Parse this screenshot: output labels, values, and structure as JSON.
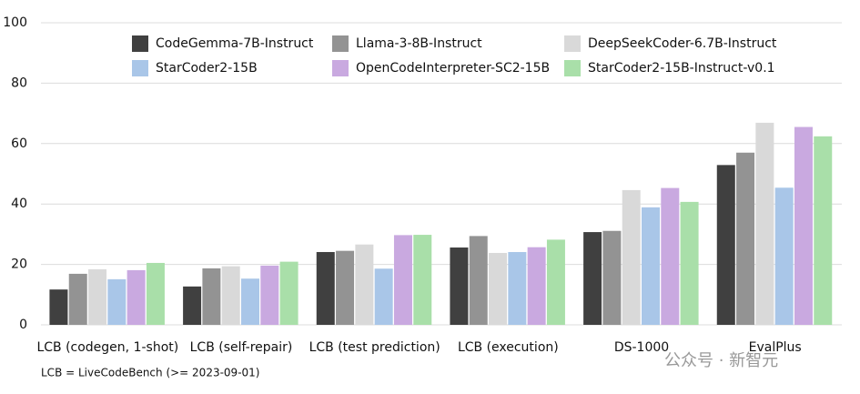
{
  "chart_data": {
    "type": "bar",
    "categories": [
      "LCB (codegen, 1-shot)",
      "LCB (self-repair)",
      "LCB (test prediction)",
      "LCB (execution)",
      "DS-1000",
      "EvalPlus"
    ],
    "series": [
      {
        "name": "CodeGemma-7B-Instruct",
        "color": "#404040",
        "values": [
          11.7,
          12.7,
          24.1,
          25.6,
          30.7,
          52.9
        ]
      },
      {
        "name": "Llama-3-8B-Instruct",
        "color": "#939393",
        "values": [
          16.9,
          18.7,
          24.5,
          29.4,
          31.1,
          57.0
        ]
      },
      {
        "name": "DeepSeekCoder-6.7B-Instruct",
        "color": "#d9d9d9",
        "values": [
          18.4,
          19.4,
          26.6,
          23.8,
          44.6,
          66.9
        ]
      },
      {
        "name": "StarCoder2-15B",
        "color": "#a9c6e8",
        "values": [
          15.1,
          15.3,
          18.6,
          24.1,
          38.9,
          45.4
        ]
      },
      {
        "name": "OpenCodeInterpreter-SC2-15B",
        "color": "#c9a9e0",
        "values": [
          18.1,
          19.6,
          29.7,
          25.7,
          45.3,
          65.5
        ]
      },
      {
        "name": "StarCoder2-15B-Instruct-v0.1",
        "color": "#a9dfa9",
        "values": [
          20.5,
          20.9,
          29.8,
          28.2,
          40.7,
          62.4
        ]
      }
    ],
    "ylim": [
      0,
      100
    ],
    "yticks": [
      0,
      20,
      40,
      60,
      80,
      100
    ],
    "grid": true,
    "footnote": "LCB = LiveCodeBench (>= 2023-09-01)",
    "watermark": "公众号 · 新智元"
  }
}
